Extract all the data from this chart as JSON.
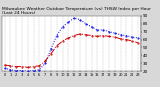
{
  "title": "Milwaukee Weather Outdoor Temperature (vs) THSW Index per Hour (Last 24 Hours)",
  "title_fontsize": 3.2,
  "background_color": "#d8d8d8",
  "plot_bg_color": "#ffffff",
  "grid_color": "#888888",
  "hours": [
    0,
    1,
    2,
    3,
    4,
    5,
    6,
    7,
    8,
    9,
    10,
    11,
    12,
    13,
    14,
    15,
    16,
    17,
    18,
    19,
    20,
    21,
    22,
    23
  ],
  "temp_values": [
    28,
    27,
    26,
    26,
    25,
    26,
    27,
    33,
    42,
    52,
    58,
    62,
    65,
    67,
    66,
    65,
    64,
    65,
    64,
    63,
    61,
    60,
    58,
    56
  ],
  "thsw_values": [
    24,
    22,
    21,
    21,
    20,
    21,
    22,
    30,
    48,
    65,
    76,
    82,
    87,
    85,
    80,
    76,
    72,
    72,
    70,
    68,
    66,
    65,
    63,
    62
  ],
  "temp_color": "#cc0000",
  "thsw_color": "#0000ee",
  "ylim": [
    20,
    90
  ],
  "yticks": [
    20,
    30,
    40,
    50,
    60,
    70,
    80,
    90
  ],
  "ytick_labels": [
    "20",
    "30",
    "40",
    "50",
    "60",
    "70",
    "80",
    "90"
  ],
  "ylabel_fontsize": 3.0,
  "xlabel_fontsize": 2.5,
  "line_width": 0.7,
  "marker_size": 1.0
}
